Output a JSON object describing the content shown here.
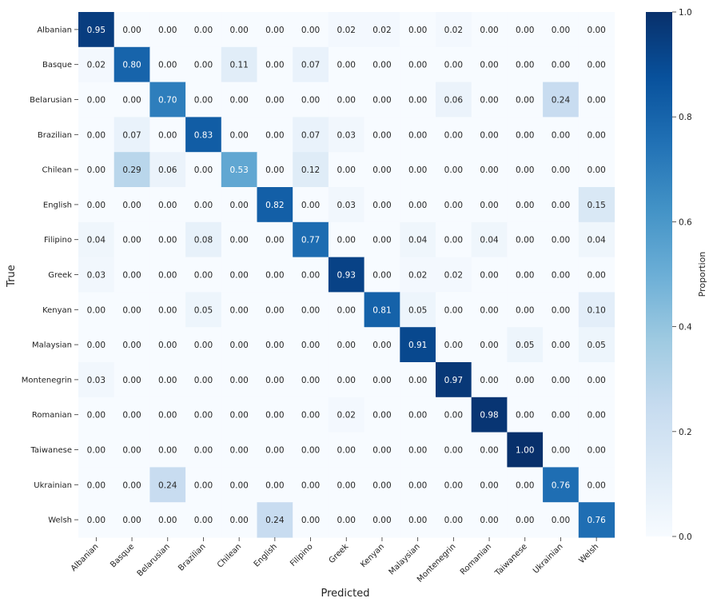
{
  "chart_data": {
    "type": "heatmap",
    "title": "",
    "xlabel": "Predicted",
    "ylabel": "True",
    "x_categories": [
      "Albanian",
      "Basque",
      "Belarusian",
      "Brazilian",
      "Chilean",
      "English",
      "Filipino",
      "Greek",
      "Kenyan",
      "Malaysian",
      "Montenegrin",
      "Romanian",
      "Taiwanese",
      "Ukrainian",
      "Welsh"
    ],
    "y_categories": [
      "Albanian",
      "Basque",
      "Belarusian",
      "Brazilian",
      "Chilean",
      "English",
      "Filipino",
      "Greek",
      "Kenyan",
      "Malaysian",
      "Montenegrin",
      "Romanian",
      "Taiwanese",
      "Ukrainian",
      "Welsh"
    ],
    "values": [
      [
        0.95,
        0.0,
        0.0,
        0.0,
        0.0,
        0.0,
        0.0,
        0.02,
        0.02,
        0.0,
        0.02,
        0.0,
        0.0,
        0.0,
        0.0
      ],
      [
        0.02,
        0.8,
        0.0,
        0.0,
        0.11,
        0.0,
        0.07,
        0.0,
        0.0,
        0.0,
        0.0,
        0.0,
        0.0,
        0.0,
        0.0
      ],
      [
        0.0,
        0.0,
        0.7,
        0.0,
        0.0,
        0.0,
        0.0,
        0.0,
        0.0,
        0.0,
        0.06,
        0.0,
        0.0,
        0.24,
        0.0
      ],
      [
        0.0,
        0.07,
        0.0,
        0.83,
        0.0,
        0.0,
        0.07,
        0.03,
        0.0,
        0.0,
        0.0,
        0.0,
        0.0,
        0.0,
        0.0
      ],
      [
        0.0,
        0.29,
        0.06,
        0.0,
        0.53,
        0.0,
        0.12,
        0.0,
        0.0,
        0.0,
        0.0,
        0.0,
        0.0,
        0.0,
        0.0
      ],
      [
        0.0,
        0.0,
        0.0,
        0.0,
        0.0,
        0.82,
        0.0,
        0.03,
        0.0,
        0.0,
        0.0,
        0.0,
        0.0,
        0.0,
        0.15
      ],
      [
        0.04,
        0.0,
        0.0,
        0.08,
        0.0,
        0.0,
        0.77,
        0.0,
        0.0,
        0.04,
        0.0,
        0.04,
        0.0,
        0.0,
        0.04
      ],
      [
        0.03,
        0.0,
        0.0,
        0.0,
        0.0,
        0.0,
        0.0,
        0.93,
        0.0,
        0.02,
        0.02,
        0.0,
        0.0,
        0.0,
        0.0
      ],
      [
        0.0,
        0.0,
        0.0,
        0.05,
        0.0,
        0.0,
        0.0,
        0.0,
        0.81,
        0.05,
        0.0,
        0.0,
        0.0,
        0.0,
        0.1
      ],
      [
        0.0,
        0.0,
        0.0,
        0.0,
        0.0,
        0.0,
        0.0,
        0.0,
        0.0,
        0.91,
        0.0,
        0.0,
        0.05,
        0.0,
        0.05
      ],
      [
        0.03,
        0.0,
        0.0,
        0.0,
        0.0,
        0.0,
        0.0,
        0.0,
        0.0,
        0.0,
        0.97,
        0.0,
        0.0,
        0.0,
        0.0
      ],
      [
        0.0,
        0.0,
        0.0,
        0.0,
        0.0,
        0.0,
        0.0,
        0.02,
        0.0,
        0.0,
        0.0,
        0.98,
        0.0,
        0.0,
        0.0
      ],
      [
        0.0,
        0.0,
        0.0,
        0.0,
        0.0,
        0.0,
        0.0,
        0.0,
        0.0,
        0.0,
        0.0,
        0.0,
        1.0,
        0.0,
        0.0
      ],
      [
        0.0,
        0.0,
        0.24,
        0.0,
        0.0,
        0.0,
        0.0,
        0.0,
        0.0,
        0.0,
        0.0,
        0.0,
        0.0,
        0.76,
        0.0
      ],
      [
        0.0,
        0.0,
        0.0,
        0.0,
        0.0,
        0.24,
        0.0,
        0.0,
        0.0,
        0.0,
        0.0,
        0.0,
        0.0,
        0.0,
        0.76
      ]
    ],
    "colorbar": {
      "label": "Proportion",
      "range": [
        0.0,
        1.0
      ],
      "ticks": [
        "0.0",
        "0.2",
        "0.4",
        "0.6",
        "0.8",
        "1.0"
      ],
      "colormap": "Blues",
      "low_color": "#f7fbff",
      "high_color": "#08306b"
    },
    "value_format": "2 decimals",
    "grid": false
  }
}
